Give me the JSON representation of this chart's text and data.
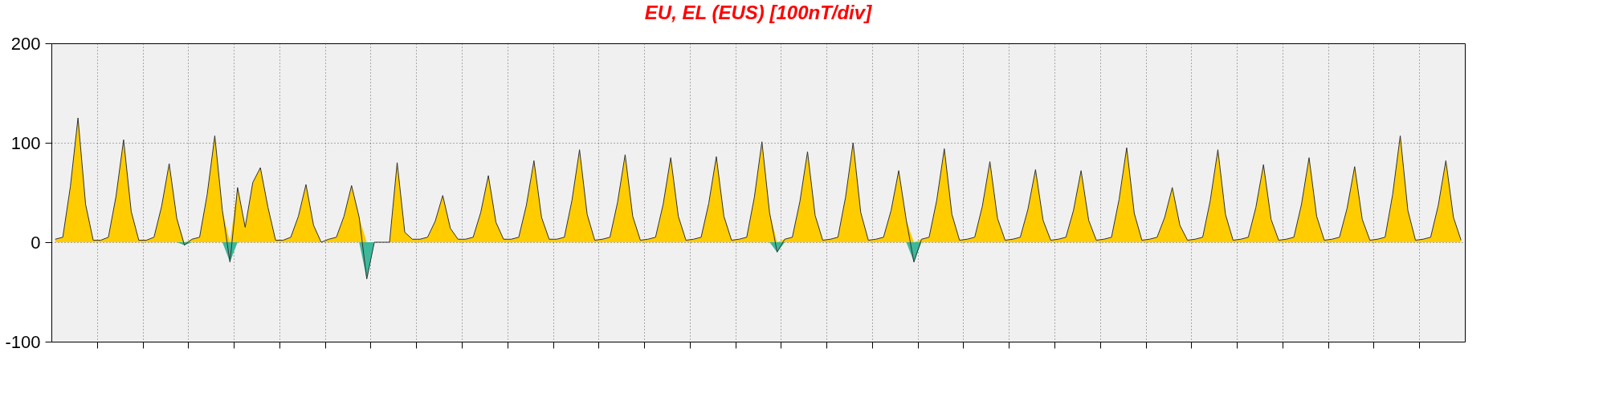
{
  "chart_data": {
    "type": "line",
    "title": "EU, EL (EUS)  [100nT/div]",
    "categories": [
      null,
      null,
      null,
      null,
      null,
      null,
      null,
      null,
      null,
      null,
      null,
      null,
      null,
      null,
      null,
      null,
      null,
      null,
      null,
      null,
      null,
      null,
      null,
      null,
      null,
      null,
      null,
      null,
      null,
      null,
      null,
      null,
      null,
      null,
      null,
      null,
      null,
      null,
      null,
      null,
      null,
      null,
      null,
      null,
      null,
      null,
      null,
      null,
      null,
      null,
      null,
      null,
      null,
      null,
      null,
      null,
      null,
      null,
      null,
      null,
      null,
      null,
      null,
      null,
      null,
      null,
      null,
      null,
      null,
      null,
      null,
      null,
      null,
      null,
      null,
      null,
      null,
      null,
      null,
      null,
      null,
      null,
      null,
      null,
      null,
      null,
      null,
      null,
      null,
      null,
      null,
      null,
      null,
      null,
      null,
      null,
      null,
      null,
      null,
      null,
      null,
      null,
      null,
      null,
      null,
      null,
      null,
      null,
      null,
      null,
      null,
      null,
      null,
      null,
      null,
      null,
      null,
      null,
      null,
      null,
      null,
      null,
      null,
      null,
      null,
      null,
      null,
      null,
      null,
      null,
      null,
      null,
      null,
      null,
      null,
      null,
      null,
      null,
      null,
      null,
      null,
      null,
      null,
      null,
      null,
      null,
      null,
      null,
      null,
      null,
      null,
      null,
      null,
      null,
      null,
      null,
      null,
      null,
      null,
      null,
      null,
      null,
      null,
      null,
      null,
      null,
      null,
      null,
      null,
      null,
      null,
      null,
      null,
      null,
      null,
      null,
      null,
      null,
      null,
      null,
      null,
      null,
      null,
      null,
      null,
      null
    ],
    "series": [
      {
        "color": "#333333",
        "values": [
          3,
          5,
          56,
          125,
          38,
          2,
          2,
          5,
          46,
          103,
          31,
          2,
          2,
          5,
          36,
          79,
          24,
          -3,
          3,
          5,
          48,
          107,
          32,
          -20,
          55,
          15,
          60,
          75,
          35,
          2,
          2,
          5,
          26,
          58,
          17,
          0,
          3,
          5,
          26,
          57,
          25,
          -37,
          0,
          0,
          0,
          80,
          10,
          3,
          3,
          5,
          21,
          47,
          14,
          3,
          3,
          5,
          30,
          67,
          20,
          3,
          3,
          5,
          37,
          82,
          25,
          3,
          3,
          5,
          42,
          93,
          28,
          2,
          3,
          5,
          40,
          88,
          26,
          2,
          3,
          5,
          38,
          85,
          26,
          2,
          3,
          5,
          39,
          86,
          26,
          2,
          3,
          5,
          45,
          101,
          30,
          -10,
          3,
          5,
          41,
          91,
          27,
          2,
          3,
          5,
          45,
          100,
          30,
          2,
          3,
          5,
          32,
          72,
          22,
          -20,
          3,
          5,
          42,
          94,
          28,
          2,
          3,
          5,
          36,
          81,
          24,
          2,
          3,
          5,
          33,
          73,
          22,
          2,
          3,
          5,
          32,
          72,
          22,
          2,
          3,
          5,
          43,
          95,
          29,
          2,
          3,
          5,
          25,
          55,
          17,
          2,
          3,
          5,
          42,
          93,
          28,
          2,
          3,
          5,
          35,
          78,
          23,
          2,
          3,
          5,
          38,
          85,
          26,
          2,
          3,
          5,
          34,
          76,
          23,
          2,
          3,
          5,
          48,
          107,
          32,
          2,
          3,
          5,
          37,
          82,
          25,
          2
        ]
      },
      {
        "type": "area",
        "color": "#ffcc00",
        "values": [
          3,
          5,
          56,
          125,
          38,
          2,
          2,
          5,
          46,
          103,
          31,
          2,
          2,
          5,
          36,
          79,
          24,
          0,
          3,
          5,
          48,
          107,
          32,
          0,
          55,
          15,
          60,
          75,
          35,
          2,
          2,
          5,
          26,
          58,
          17,
          0,
          3,
          5,
          26,
          57,
          25,
          0,
          0,
          0,
          0,
          80,
          10,
          3,
          3,
          5,
          21,
          47,
          14,
          3,
          3,
          5,
          30,
          67,
          20,
          3,
          3,
          5,
          37,
          82,
          25,
          3,
          3,
          5,
          42,
          93,
          28,
          2,
          3,
          5,
          40,
          88,
          26,
          2,
          3,
          5,
          38,
          85,
          26,
          2,
          3,
          5,
          39,
          86,
          26,
          2,
          3,
          5,
          45,
          101,
          30,
          0,
          3,
          5,
          41,
          91,
          27,
          2,
          3,
          5,
          45,
          100,
          30,
          2,
          3,
          5,
          32,
          72,
          22,
          0,
          3,
          5,
          42,
          94,
          28,
          2,
          3,
          5,
          36,
          81,
          24,
          2,
          3,
          5,
          33,
          73,
          22,
          2,
          3,
          5,
          32,
          72,
          22,
          2,
          3,
          5,
          43,
          95,
          29,
          2,
          3,
          5,
          25,
          55,
          17,
          2,
          3,
          5,
          42,
          93,
          28,
          2,
          3,
          5,
          35,
          78,
          23,
          2,
          3,
          5,
          38,
          85,
          26,
          2,
          3,
          5,
          34,
          76,
          23,
          2,
          3,
          5,
          48,
          107,
          32,
          2,
          3,
          5,
          37,
          82,
          25,
          2
        ]
      },
      {
        "type": "area",
        "color": "#3cb89a",
        "values": [
          0,
          0,
          0,
          0,
          0,
          0,
          0,
          0,
          0,
          0,
          0,
          0,
          0,
          0,
          0,
          0,
          0,
          -3,
          0,
          0,
          0,
          0,
          0,
          -20,
          0,
          0,
          0,
          0,
          0,
          0,
          0,
          0,
          0,
          0,
          0,
          0,
          0,
          0,
          0,
          0,
          0,
          -37,
          0,
          0,
          0,
          0,
          0,
          0,
          0,
          0,
          0,
          0,
          0,
          0,
          0,
          0,
          0,
          0,
          0,
          0,
          0,
          0,
          0,
          0,
          0,
          0,
          0,
          0,
          0,
          0,
          0,
          0,
          0,
          0,
          0,
          0,
          0,
          0,
          0,
          0,
          0,
          0,
          0,
          0,
          0,
          0,
          0,
          0,
          0,
          0,
          0,
          0,
          0,
          0,
          0,
          -10,
          0,
          0,
          0,
          0,
          0,
          0,
          0,
          0,
          0,
          0,
          0,
          0,
          0,
          0,
          0,
          0,
          0,
          -20,
          0,
          0,
          0,
          0,
          0,
          0,
          0,
          0,
          0,
          0,
          0,
          0,
          0,
          0,
          0,
          0,
          0,
          0,
          0,
          0,
          0,
          0,
          0,
          0,
          0,
          0,
          0,
          0,
          0,
          0,
          0,
          0,
          0,
          0,
          0,
          0,
          0,
          0,
          0,
          0,
          0,
          0,
          0,
          0,
          0,
          0,
          0,
          0,
          0,
          0,
          0,
          0,
          0,
          0,
          0,
          0,
          0,
          0,
          0,
          0,
          0,
          0,
          0,
          0,
          0,
          0,
          0,
          0,
          0,
          0,
          0,
          0
        ]
      }
    ],
    "ylim": [
      -100,
      200
    ],
    "yticks": [
      -100,
      0,
      100,
      200
    ],
    "grid": true,
    "tick_labels": "y"
  }
}
